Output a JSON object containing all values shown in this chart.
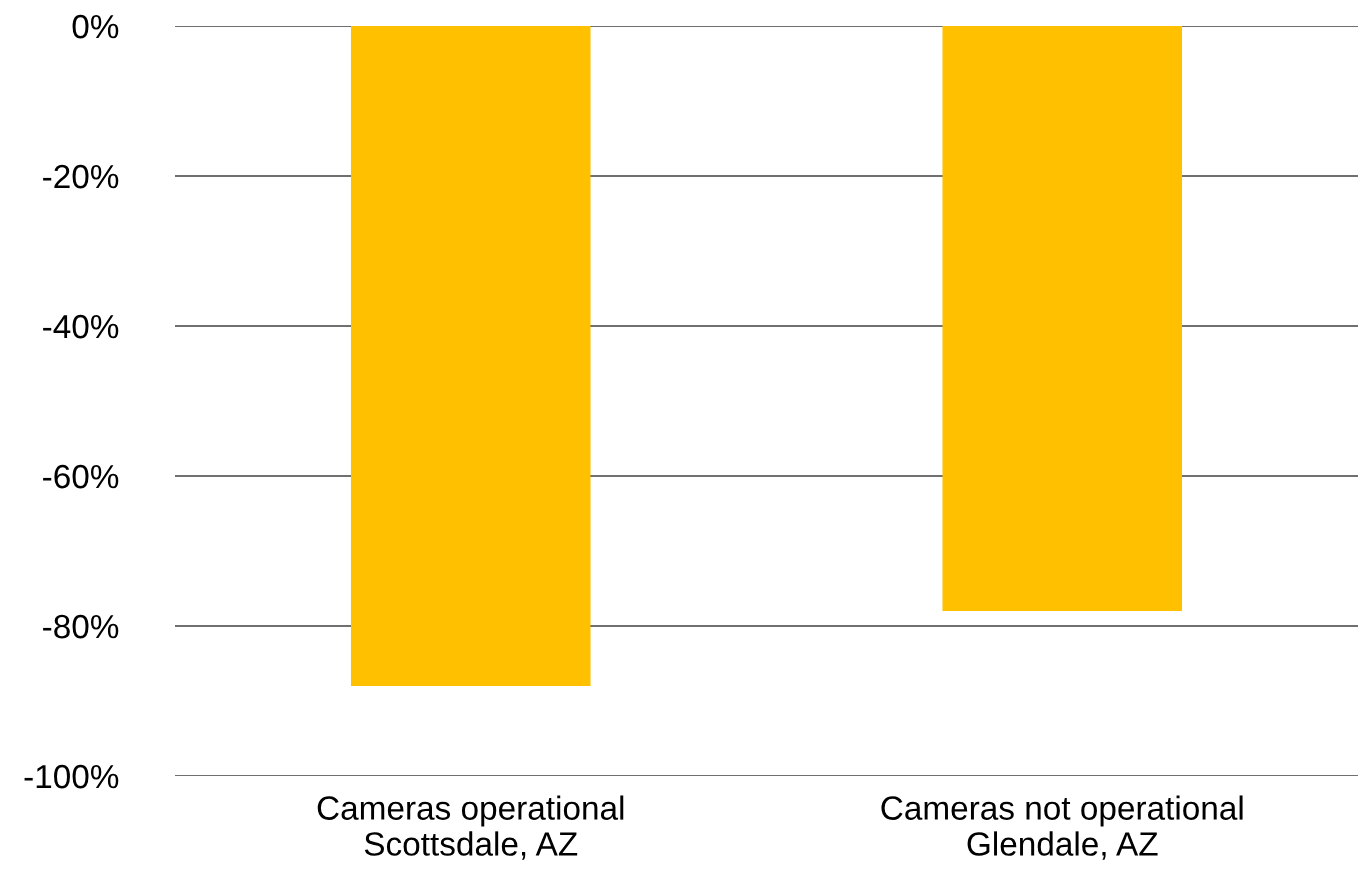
{
  "chart_data": {
    "type": "bar",
    "categories": [
      "Cameras operational\nScottsdale, AZ",
      "Cameras not operational\nGlendale, AZ"
    ],
    "values": [
      -88,
      -78
    ],
    "color": "#ffc000",
    "ylim": [
      -100,
      0
    ],
    "yticks": [
      {
        "value": -100,
        "label": "-100%"
      },
      {
        "value": -80,
        "label": "-80%"
      },
      {
        "value": -60,
        "label": "-60%"
      },
      {
        "value": -40,
        "label": "-40%"
      },
      {
        "value": -20,
        "label": "-20%"
      },
      {
        "value": 0,
        "label": "0%"
      }
    ],
    "grid": "y",
    "legend": false
  }
}
